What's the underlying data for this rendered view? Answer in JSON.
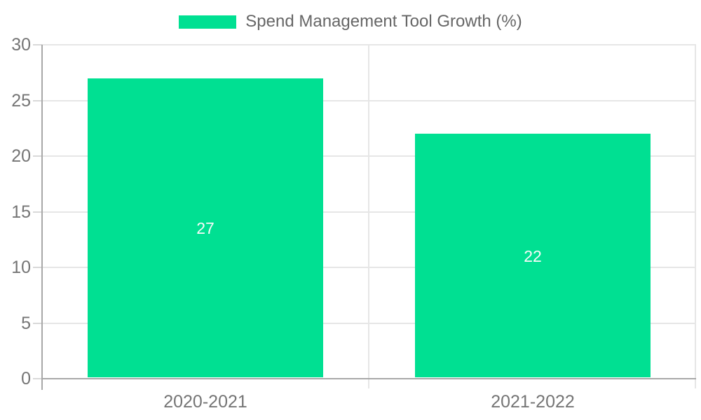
{
  "legend": {
    "label": "Spend Management Tool Growth (%)",
    "swatch_color": "#00E092"
  },
  "chart_data": {
    "type": "bar",
    "title": "Spend Management Tool Growth (%)",
    "categories": [
      "2020-2021",
      "2021-2022"
    ],
    "series": [
      {
        "name": "Spend Management Tool Growth (%)",
        "values": [
          27,
          22
        ]
      }
    ],
    "data_labels": [
      "27",
      "22"
    ],
    "xlabel": "",
    "ylabel": "",
    "ylim": [
      0,
      30
    ],
    "yticks": [
      0,
      5,
      10,
      15,
      20,
      25,
      30
    ],
    "grid": true,
    "legend_position": "top",
    "colors": {
      "bar": "#00E092",
      "grid": "#e6e6e6",
      "axis": "#a8a8a8",
      "tick": "#d9d9d9",
      "axis_text": "#757575",
      "legend_text": "#666666",
      "data_label_text": "#fafafa",
      "background": "#ffffff"
    }
  }
}
